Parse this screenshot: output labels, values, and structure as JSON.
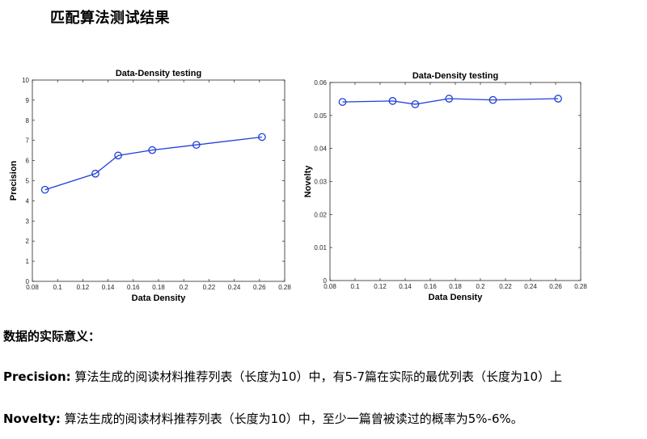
{
  "page": {
    "title": "匹配算法测试结果"
  },
  "chart_data": [
    {
      "type": "line",
      "title": "Data-Density testing",
      "xlabel": "Data Density",
      "ylabel": "Precision",
      "x": [
        0.09,
        0.13,
        0.148,
        0.175,
        0.21,
        0.262
      ],
      "series": [
        {
          "values": [
            4.55,
            5.35,
            6.25,
            6.52,
            6.78,
            7.17
          ]
        }
      ],
      "xlim": [
        0.08,
        0.28
      ],
      "ylim": [
        0,
        10
      ],
      "xticks": [
        0.08,
        0.1,
        0.12,
        0.14,
        0.16,
        0.18,
        0.2,
        0.22,
        0.24,
        0.26,
        0.28
      ],
      "xtick_labels": [
        "0.08",
        "0.1",
        "0.12",
        "0.14",
        "0.16",
        "0.18",
        "0.2",
        "0.22",
        "0.24",
        "0.26",
        "0.28"
      ],
      "yticks": [
        0,
        1,
        2,
        3,
        4,
        5,
        6,
        7,
        8,
        9,
        10
      ],
      "ytick_labels": [
        "0",
        "1",
        "2",
        "3",
        "4",
        "5",
        "6",
        "7",
        "8",
        "9",
        "10"
      ],
      "line_color": "#1f3fd6",
      "marker": "circle",
      "grid": false
    },
    {
      "type": "line",
      "title": "Data-Density testing",
      "xlabel": "Data Density",
      "ylabel": "Novelty",
      "x": [
        0.09,
        0.13,
        0.148,
        0.175,
        0.21,
        0.262
      ],
      "series": [
        {
          "values": [
            0.0541,
            0.0544,
            0.0534,
            0.0551,
            0.0547,
            0.0551
          ]
        }
      ],
      "xlim": [
        0.08,
        0.28
      ],
      "ylim": [
        0,
        0.06
      ],
      "xticks": [
        0.08,
        0.1,
        0.12,
        0.14,
        0.16,
        0.18,
        0.2,
        0.22,
        0.24,
        0.26,
        0.28
      ],
      "xtick_labels": [
        "0.08",
        "0.1",
        "0.12",
        "0.14",
        "0.16",
        "0.18",
        "0.2",
        "0.22",
        "0.24",
        "0.26",
        "0.28"
      ],
      "yticks": [
        0,
        0.01,
        0.02,
        0.03,
        0.04,
        0.05,
        0.06
      ],
      "ytick_labels": [
        "0",
        "0.01",
        "0.02",
        "0.03",
        "0.04",
        "0.05",
        "0.06"
      ],
      "line_color": "#1f3fd6",
      "marker": "circle",
      "grid": false
    }
  ],
  "explanation": {
    "heading": "数据的实际意义：",
    "precision": {
      "term": "Precision:",
      "text": " 算法生成的阅读材料推荐列表（长度为10）中，有5-7篇在实际的最优列表（长度为10）上"
    },
    "novelty": {
      "term": "Novelty:",
      "text": " 算法生成的阅读材料推荐列表（长度为10）中，至少一篇曾被读过的概率为5%-6%。"
    }
  }
}
